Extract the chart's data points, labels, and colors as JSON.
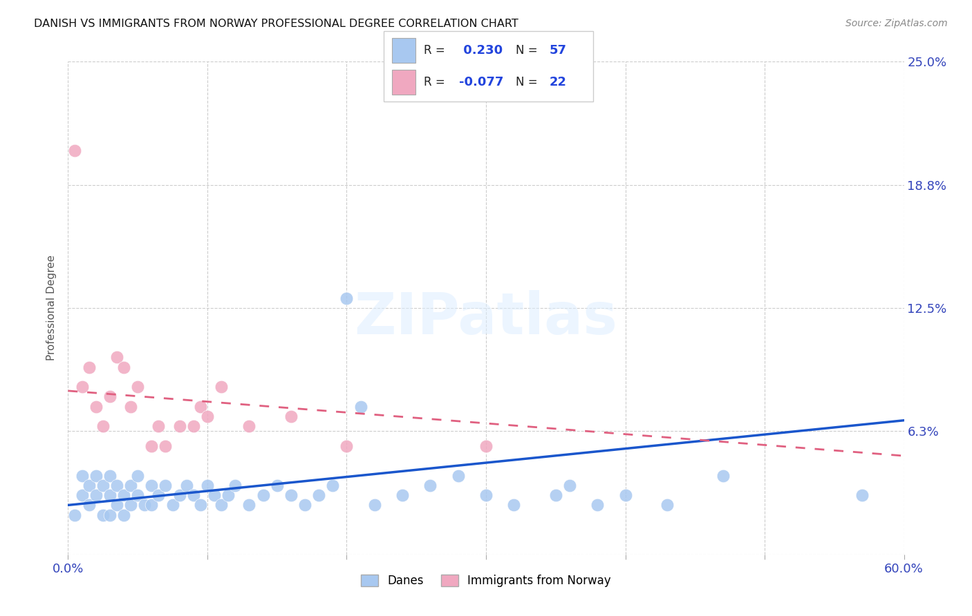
{
  "title": "DANISH VS IMMIGRANTS FROM NORWAY PROFESSIONAL DEGREE CORRELATION CHART",
  "source": "Source: ZipAtlas.com",
  "ylabel": "Professional Degree",
  "xlim": [
    0,
    0.6
  ],
  "ylim": [
    0,
    0.25
  ],
  "xticks": [
    0.0,
    0.1,
    0.2,
    0.3,
    0.4,
    0.5,
    0.6
  ],
  "yticks": [
    0.0,
    0.0625,
    0.125,
    0.1875,
    0.25
  ],
  "ytick_labels": [
    "",
    "6.3%",
    "12.5%",
    "18.8%",
    "25.0%"
  ],
  "blue_color": "#A8C8F0",
  "pink_color": "#F0A8C0",
  "blue_line_color": "#1A56CC",
  "pink_line_color": "#E06080",
  "danes_x": [
    0.005,
    0.01,
    0.01,
    0.015,
    0.015,
    0.02,
    0.02,
    0.025,
    0.025,
    0.03,
    0.03,
    0.03,
    0.035,
    0.035,
    0.04,
    0.04,
    0.045,
    0.045,
    0.05,
    0.05,
    0.055,
    0.06,
    0.06,
    0.065,
    0.07,
    0.075,
    0.08,
    0.085,
    0.09,
    0.095,
    0.1,
    0.105,
    0.11,
    0.115,
    0.12,
    0.13,
    0.14,
    0.15,
    0.16,
    0.17,
    0.18,
    0.19,
    0.2,
    0.21,
    0.22,
    0.24,
    0.26,
    0.28,
    0.3,
    0.32,
    0.35,
    0.36,
    0.38,
    0.4,
    0.43,
    0.47,
    0.57
  ],
  "danes_y": [
    0.02,
    0.03,
    0.04,
    0.025,
    0.035,
    0.03,
    0.04,
    0.035,
    0.02,
    0.03,
    0.04,
    0.02,
    0.035,
    0.025,
    0.03,
    0.02,
    0.035,
    0.025,
    0.03,
    0.04,
    0.025,
    0.035,
    0.025,
    0.03,
    0.035,
    0.025,
    0.03,
    0.035,
    0.03,
    0.025,
    0.035,
    0.03,
    0.025,
    0.03,
    0.035,
    0.025,
    0.03,
    0.035,
    0.03,
    0.025,
    0.03,
    0.035,
    0.13,
    0.075,
    0.025,
    0.03,
    0.035,
    0.04,
    0.03,
    0.025,
    0.03,
    0.035,
    0.025,
    0.03,
    0.025,
    0.04,
    0.03
  ],
  "norway_x": [
    0.005,
    0.01,
    0.015,
    0.02,
    0.025,
    0.03,
    0.035,
    0.04,
    0.045,
    0.05,
    0.06,
    0.065,
    0.07,
    0.08,
    0.09,
    0.095,
    0.1,
    0.11,
    0.13,
    0.16,
    0.2,
    0.3
  ],
  "norway_y": [
    0.205,
    0.085,
    0.095,
    0.075,
    0.065,
    0.08,
    0.1,
    0.095,
    0.075,
    0.085,
    0.055,
    0.065,
    0.055,
    0.065,
    0.065,
    0.075,
    0.07,
    0.085,
    0.065,
    0.07,
    0.055,
    0.055
  ],
  "blue_trend_x0": 0.0,
  "blue_trend_y0": 0.025,
  "blue_trend_x1": 0.6,
  "blue_trend_y1": 0.068,
  "pink_trend_x0": 0.0,
  "pink_trend_y0": 0.083,
  "pink_trend_x1": 0.6,
  "pink_trend_y1": 0.05
}
